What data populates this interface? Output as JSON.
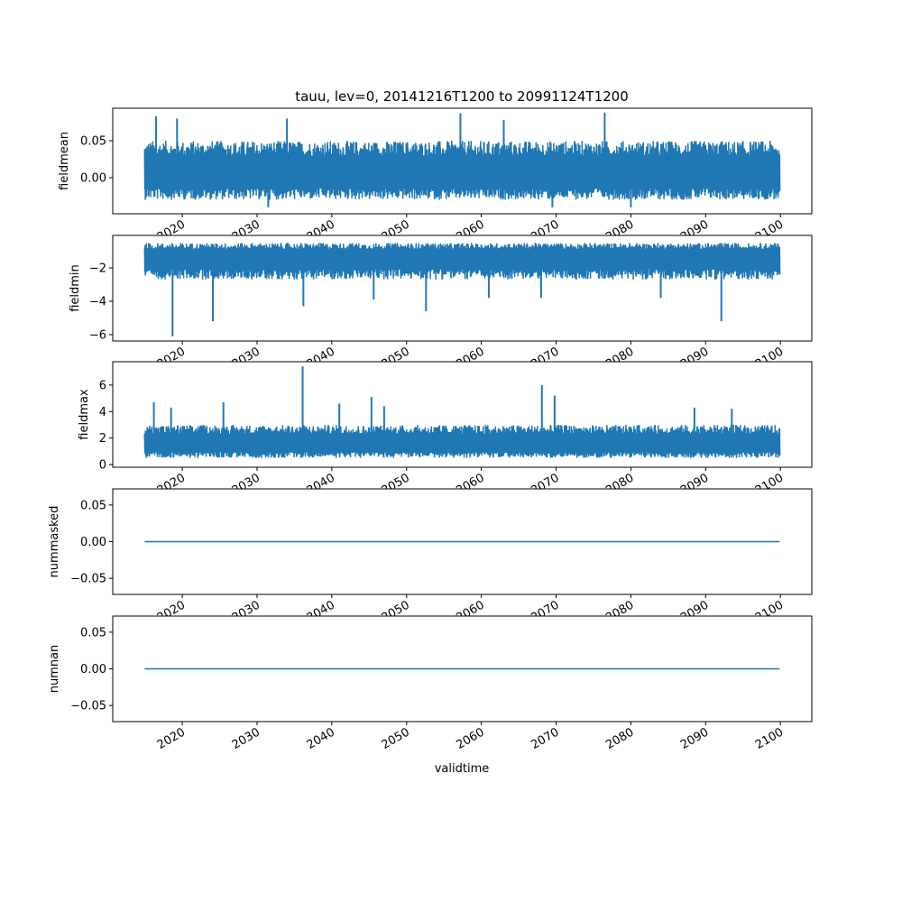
{
  "chart_data": {
    "type": "line",
    "title": "tauu, lev=0, 20141216T1200 to 20991124T1200",
    "xlabel": "validtime",
    "x_range": [
      2014.96,
      2099.9
    ],
    "xlim": [
      2010.7,
      2104.2
    ],
    "x_ticks": [
      2020,
      2030,
      2040,
      2050,
      2060,
      2070,
      2080,
      2090,
      2100
    ],
    "x_tick_labels": [
      "2020",
      "2030",
      "2040",
      "2050",
      "2060",
      "2070",
      "2080",
      "2090",
      "2100"
    ],
    "line_color": "#1f77b4",
    "panels": [
      {
        "ylabel": "fieldmean",
        "ylim": [
          -0.0488,
          0.0939
        ],
        "y_ticks": [
          0.0,
          0.05
        ],
        "y_tick_labels": [
          "0.00",
          "0.05"
        ],
        "typical_low": -0.03,
        "typical_high": 0.05,
        "base": 0.005,
        "extremes": [
          [
            2016.5,
            0.083
          ],
          [
            2019.3,
            0.08
          ],
          [
            2057.2,
            0.087
          ],
          [
            2076.5,
            0.088
          ],
          [
            2063,
            0.078
          ],
          [
            2034,
            0.08
          ],
          [
            2031.5,
            -0.04
          ],
          [
            2069.5,
            -0.04
          ],
          [
            2080,
            -0.04
          ]
        ]
      },
      {
        "ylabel": "fieldmin",
        "ylim": [
          -6.38,
          -0.054
        ],
        "y_ticks": [
          -6,
          -4,
          -2
        ],
        "y_tick_labels": [
          "−6",
          "−4",
          "−2"
        ],
        "typical_low": -2.7,
        "typical_high": -0.5,
        "base": -1.3,
        "extremes": [
          [
            2018.7,
            -6.1
          ],
          [
            2024.1,
            -5.2
          ],
          [
            2036.2,
            -4.3
          ],
          [
            2052.6,
            -4.6
          ],
          [
            2092.1,
            -5.2
          ],
          [
            2045.6,
            -3.9
          ],
          [
            2061,
            -3.8
          ],
          [
            2068,
            -3.8
          ],
          [
            2084,
            -3.8
          ]
        ]
      },
      {
        "ylabel": "fieldmax",
        "ylim": [
          -0.2,
          7.76
        ],
        "y_ticks": [
          0,
          2,
          4,
          6
        ],
        "y_tick_labels": [
          "0",
          "2",
          "4",
          "6"
        ],
        "typical_low": 0.5,
        "typical_high": 3.0,
        "base": 1.5,
        "extremes": [
          [
            2036.1,
            7.4
          ],
          [
            2068.1,
            6.0
          ],
          [
            2069.8,
            5.2
          ],
          [
            2045.3,
            5.1
          ],
          [
            2016.2,
            4.7
          ],
          [
            2025.5,
            4.7
          ],
          [
            2018.5,
            4.3
          ],
          [
            2041,
            4.6
          ],
          [
            2047,
            4.4
          ],
          [
            2088.5,
            4.3
          ],
          [
            2093.5,
            4.2
          ]
        ]
      },
      {
        "ylabel": "nummasked",
        "ylim": [
          -0.072,
          0.072
        ],
        "y_ticks": [
          -0.05,
          0.0,
          0.05
        ],
        "y_tick_labels": [
          "−0.05",
          "0.00",
          "0.05"
        ],
        "constant": 0
      },
      {
        "ylabel": "numnan",
        "ylim": [
          -0.072,
          0.072
        ],
        "y_ticks": [
          -0.05,
          0.0,
          0.05
        ],
        "y_tick_labels": [
          "−0.05",
          "0.00",
          "0.05"
        ],
        "constant": 0
      }
    ]
  }
}
